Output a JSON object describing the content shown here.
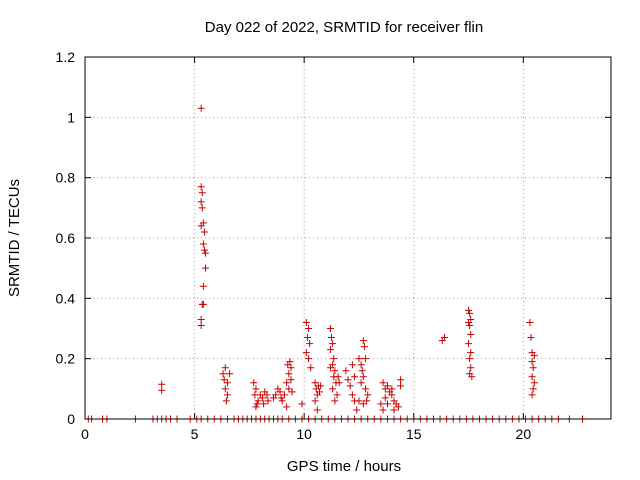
{
  "chart_data": {
    "type": "scatter",
    "title": "Day 022 of 2022, SRMTID for receiver flin",
    "xlabel": "GPS time / hours",
    "ylabel": "SRMTID / TECUs",
    "xlim": [
      0,
      24
    ],
    "ylim": [
      0,
      1.2
    ],
    "xticks": [
      "0",
      "5",
      "10",
      "15",
      "20"
    ],
    "yticks": [
      "0",
      "0.2",
      "0.4",
      "0.6",
      "0.8",
      "1",
      "1.2"
    ],
    "grid": true,
    "marker": "plus",
    "color": "#cc0000",
    "series": [
      {
        "name": "SRMTID",
        "points": [
          [
            0.15,
            0
          ],
          [
            0.3,
            0
          ],
          [
            0.8,
            0
          ],
          [
            1.0,
            0
          ],
          [
            2.3,
            0
          ],
          [
            3.1,
            0
          ],
          [
            3.3,
            0
          ],
          [
            3.5,
            0
          ],
          [
            3.7,
            0
          ],
          [
            3.9,
            0
          ],
          [
            4.2,
            0
          ],
          [
            4.8,
            0
          ],
          [
            5.1,
            0
          ],
          [
            5.3,
            0
          ],
          [
            5.6,
            0
          ],
          [
            5.9,
            0
          ],
          [
            6.2,
            0
          ],
          [
            6.5,
            0
          ],
          [
            6.8,
            0
          ],
          [
            7.0,
            0
          ],
          [
            7.2,
            0
          ],
          [
            7.4,
            0
          ],
          [
            7.6,
            0
          ],
          [
            7.8,
            0
          ],
          [
            8.0,
            0
          ],
          [
            8.2,
            0
          ],
          [
            8.4,
            0
          ],
          [
            8.6,
            0
          ],
          [
            8.8,
            0
          ],
          [
            9.0,
            0
          ],
          [
            9.3,
            0
          ],
          [
            9.6,
            0
          ],
          [
            9.9,
            0
          ],
          [
            10.2,
            0
          ],
          [
            10.5,
            0
          ],
          [
            10.8,
            0
          ],
          [
            11.1,
            0
          ],
          [
            11.4,
            0
          ],
          [
            11.7,
            0
          ],
          [
            12.0,
            0
          ],
          [
            12.3,
            0
          ],
          [
            12.6,
            0
          ],
          [
            12.9,
            0
          ],
          [
            13.2,
            0
          ],
          [
            13.5,
            0
          ],
          [
            13.8,
            0
          ],
          [
            14.1,
            0
          ],
          [
            14.4,
            0
          ],
          [
            14.7,
            0
          ],
          [
            15.0,
            0
          ],
          [
            15.3,
            0
          ],
          [
            15.6,
            0
          ],
          [
            15.9,
            0
          ],
          [
            16.2,
            0
          ],
          [
            16.5,
            0
          ],
          [
            16.8,
            0
          ],
          [
            17.1,
            0
          ],
          [
            17.4,
            0
          ],
          [
            17.7,
            0
          ],
          [
            18.0,
            0
          ],
          [
            18.3,
            0
          ],
          [
            18.6,
            0
          ],
          [
            18.9,
            0
          ],
          [
            19.2,
            0
          ],
          [
            19.5,
            0
          ],
          [
            19.8,
            0
          ],
          [
            20.1,
            0
          ],
          [
            20.4,
            0
          ],
          [
            20.7,
            0
          ],
          [
            21.0,
            0
          ],
          [
            21.3,
            0
          ],
          [
            21.6,
            0
          ],
          [
            22.1,
            0
          ],
          [
            22.7,
            0
          ],
          [
            3.5,
            0.095
          ],
          [
            3.5,
            0.115
          ],
          [
            5.3,
            1.03
          ],
          [
            5.3,
            0.77
          ],
          [
            5.35,
            0.75
          ],
          [
            5.3,
            0.72
          ],
          [
            5.35,
            0.7
          ],
          [
            5.4,
            0.65
          ],
          [
            5.3,
            0.64
          ],
          [
            5.45,
            0.62
          ],
          [
            5.4,
            0.58
          ],
          [
            5.45,
            0.56
          ],
          [
            5.5,
            0.55
          ],
          [
            5.5,
            0.5
          ],
          [
            5.4,
            0.44
          ],
          [
            5.35,
            0.38
          ],
          [
            5.4,
            0.38
          ],
          [
            5.3,
            0.33
          ],
          [
            5.3,
            0.31
          ],
          [
            6.3,
            0.15
          ],
          [
            6.4,
            0.17
          ],
          [
            6.35,
            0.13
          ],
          [
            6.5,
            0.12
          ],
          [
            6.4,
            0.1
          ],
          [
            6.5,
            0.08
          ],
          [
            6.45,
            0.06
          ],
          [
            6.6,
            0.15
          ],
          [
            7.7,
            0.12
          ],
          [
            7.8,
            0.1
          ],
          [
            7.75,
            0.08
          ],
          [
            7.9,
            0.06
          ],
          [
            7.85,
            0.05
          ],
          [
            8.0,
            0.08
          ],
          [
            8.1,
            0.07
          ],
          [
            8.2,
            0.09
          ],
          [
            8.15,
            0.05
          ],
          [
            8.3,
            0.08
          ],
          [
            8.35,
            0.06
          ],
          [
            7.8,
            0.04
          ],
          [
            8.6,
            0.07
          ],
          [
            8.7,
            0.08
          ],
          [
            8.8,
            0.1
          ],
          [
            8.9,
            0.09
          ],
          [
            8.95,
            0.07
          ],
          [
            9.0,
            0.06
          ],
          [
            9.1,
            0.08
          ],
          [
            9.2,
            0.12
          ],
          [
            9.3,
            0.15
          ],
          [
            9.25,
            0.18
          ],
          [
            9.35,
            0.19
          ],
          [
            9.4,
            0.17
          ],
          [
            9.3,
            0.1
          ],
          [
            9.4,
            0.13
          ],
          [
            9.45,
            0.09
          ],
          [
            9.2,
            0.04
          ],
          [
            9.9,
            0.05
          ],
          [
            10.1,
            0.32
          ],
          [
            10.2,
            0.3
          ],
          [
            10.15,
            0.27
          ],
          [
            10.25,
            0.25
          ],
          [
            10.1,
            0.22
          ],
          [
            10.2,
            0.2
          ],
          [
            10.3,
            0.17
          ],
          [
            10.5,
            0.12
          ],
          [
            10.55,
            0.1
          ],
          [
            10.6,
            0.08
          ],
          [
            10.5,
            0.06
          ],
          [
            10.65,
            0.11
          ],
          [
            10.7,
            0.09
          ],
          [
            10.6,
            0.03
          ],
          [
            10.75,
            0.11
          ],
          [
            11.2,
            0.3
          ],
          [
            11.25,
            0.27
          ],
          [
            11.3,
            0.25
          ],
          [
            11.2,
            0.23
          ],
          [
            11.35,
            0.2
          ],
          [
            11.3,
            0.18
          ],
          [
            11.4,
            0.16
          ],
          [
            11.35,
            0.14
          ],
          [
            11.45,
            0.12
          ],
          [
            11.3,
            0.1
          ],
          [
            11.5,
            0.08
          ],
          [
            11.4,
            0.06
          ],
          [
            11.55,
            0.14
          ],
          [
            11.6,
            0.12
          ],
          [
            11.2,
            0.17
          ],
          [
            11.9,
            0.16
          ],
          [
            12.0,
            0.13
          ],
          [
            12.1,
            0.11
          ],
          [
            12.2,
            0.08
          ],
          [
            12.3,
            0.06
          ],
          [
            12.2,
            0.18
          ],
          [
            12.3,
            0.14
          ],
          [
            12.5,
            0.2
          ],
          [
            12.6,
            0.18
          ],
          [
            12.65,
            0.16
          ],
          [
            12.7,
            0.26
          ],
          [
            12.75,
            0.24
          ],
          [
            12.8,
            0.2
          ],
          [
            12.7,
            0.14
          ],
          [
            12.6,
            0.12
          ],
          [
            12.8,
            0.1
          ],
          [
            12.9,
            0.08
          ],
          [
            12.85,
            0.06
          ],
          [
            12.5,
            0.06
          ],
          [
            12.4,
            0.03
          ],
          [
            12.7,
            0.05
          ],
          [
            13.5,
            0.05
          ],
          [
            13.6,
            0.12
          ],
          [
            13.7,
            0.1
          ],
          [
            13.8,
            0.11
          ],
          [
            13.9,
            0.09
          ],
          [
            13.7,
            0.07
          ],
          [
            13.8,
            0.05
          ],
          [
            14.0,
            0.08
          ],
          [
            14.1,
            0.06
          ],
          [
            14.0,
            0.1
          ],
          [
            14.2,
            0.05
          ],
          [
            14.3,
            0.04
          ],
          [
            14.4,
            0.13
          ],
          [
            14.4,
            0.11
          ],
          [
            14.1,
            0.03
          ],
          [
            13.6,
            0.03
          ],
          [
            16.3,
            0.26
          ],
          [
            16.4,
            0.27
          ],
          [
            17.5,
            0.36
          ],
          [
            17.55,
            0.35
          ],
          [
            17.6,
            0.33
          ],
          [
            17.5,
            0.32
          ],
          [
            17.55,
            0.31
          ],
          [
            17.6,
            0.28
          ],
          [
            17.5,
            0.25
          ],
          [
            17.6,
            0.22
          ],
          [
            17.55,
            0.2
          ],
          [
            17.6,
            0.17
          ],
          [
            17.55,
            0.15
          ],
          [
            17.65,
            0.14
          ],
          [
            20.3,
            0.32
          ],
          [
            20.35,
            0.27
          ],
          [
            20.4,
            0.22
          ],
          [
            20.5,
            0.21
          ],
          [
            20.4,
            0.19
          ],
          [
            20.45,
            0.17
          ],
          [
            20.4,
            0.14
          ],
          [
            20.5,
            0.12
          ],
          [
            20.45,
            0.1
          ],
          [
            20.4,
            0.08
          ]
        ]
      }
    ]
  }
}
